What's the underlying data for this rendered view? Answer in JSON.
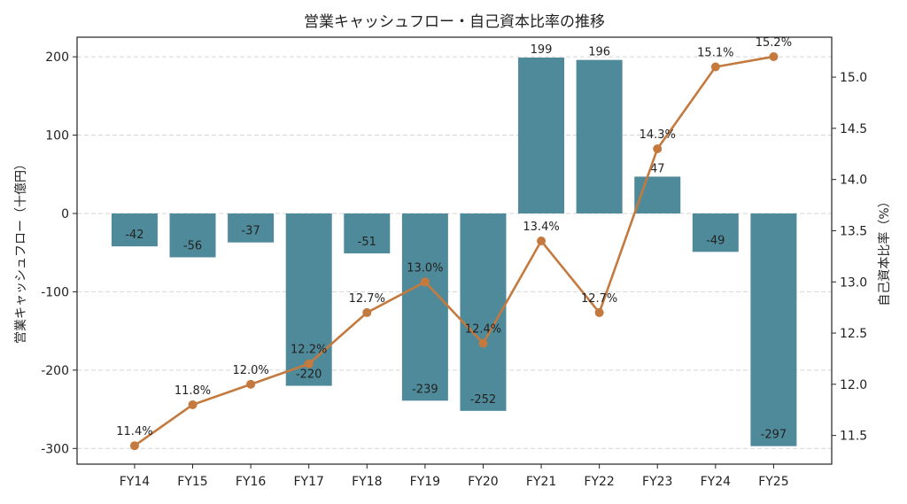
{
  "chart_data": {
    "type": "bar+line",
    "title": "営業キャッシュフロー・自己資本比率の推移",
    "categories": [
      "FY14",
      "FY15",
      "FY16",
      "FY17",
      "FY18",
      "FY19",
      "FY20",
      "FY21",
      "FY22",
      "FY23",
      "FY24",
      "FY25"
    ],
    "series": [
      {
        "name": "営業キャッシュフロー",
        "type": "bar",
        "axis": "left",
        "color": "#4f8a9a",
        "values": [
          -42,
          -56,
          -37,
          -220,
          -51,
          -239,
          -252,
          199,
          196,
          47,
          -49,
          -297
        ],
        "labels": [
          "-42",
          "-56",
          "-37",
          "-220",
          "-51",
          "-239",
          "-252",
          "199",
          "196",
          "47",
          "-49",
          "-297"
        ]
      },
      {
        "name": "自己資本比率",
        "type": "line",
        "axis": "right",
        "color": "#c47a3e",
        "values": [
          11.4,
          11.8,
          12.0,
          12.2,
          12.7,
          13.0,
          12.4,
          13.4,
          12.7,
          14.3,
          15.1,
          15.2
        ],
        "labels": [
          "11.4%",
          "11.8%",
          "12.0%",
          "12.2%",
          "12.7%",
          "13.0%",
          "12.4%",
          "13.4%",
          "12.7%",
          "14.3%",
          "15.1%",
          "15.2%"
        ]
      }
    ],
    "ylabel_left": "営業キャッシュフロー（十億円）",
    "ylabel_right": "自己資本比率（%）",
    "ylim_left": [
      -320,
      225
    ],
    "ylim_right": [
      11.22,
      15.39
    ],
    "yticks_left": [
      200,
      100,
      0,
      -100,
      -200,
      -300
    ],
    "yticks_left_labels": [
      "200",
      "100",
      "0",
      "-100",
      "-200",
      "-300"
    ],
    "yticks_right": [
      15.0,
      14.5,
      14.0,
      13.5,
      13.0,
      12.5,
      12.0,
      11.5
    ],
    "yticks_right_labels": [
      "15.0",
      "14.5",
      "14.0",
      "13.5",
      "13.0",
      "12.5",
      "12.0",
      "11.5"
    ],
    "grid": "horizontal dashed",
    "legend": "none"
  }
}
